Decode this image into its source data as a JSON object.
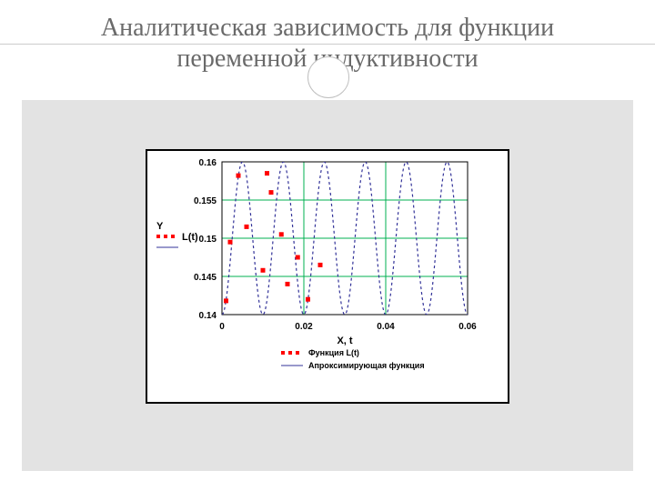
{
  "title_line1": "Аналитическая зависимость для функции",
  "title_line2": "переменной индуктивности",
  "chart": {
    "type": "scatter+line",
    "plot_bg": "#ffffff",
    "border_color": "#000000",
    "grid_color": "#00b050",
    "tick_font_size": 10,
    "tick_font_weight": "bold",
    "tick_color": "#000000",
    "x_axis": {
      "min": 0,
      "max": 0.06,
      "ticks": [
        0,
        0.02,
        0.04,
        0.06
      ],
      "label": "X, t"
    },
    "y_axis": {
      "min": 0.14,
      "max": 0.16,
      "ticks": [
        0.14,
        0.145,
        0.15,
        0.155,
        0.16
      ]
    },
    "y_labels": [
      "Y",
      "L(t)"
    ],
    "line_series": {
      "color": "#333399",
      "dash": "3,3",
      "width": 1.2,
      "amplitude": 0.01,
      "offset": 0.15,
      "period": 0.01,
      "phase": -1.5708
    },
    "scatter_series": {
      "color": "#ff0000",
      "marker": "square",
      "size": 5,
      "points": [
        [
          0.001,
          0.1418
        ],
        [
          0.002,
          0.1495
        ],
        [
          0.004,
          0.1582
        ],
        [
          0.006,
          0.1515
        ],
        [
          0.01,
          0.1458
        ],
        [
          0.011,
          0.1585
        ],
        [
          0.012,
          0.156
        ],
        [
          0.0145,
          0.1505
        ],
        [
          0.016,
          0.144
        ],
        [
          0.0185,
          0.1475
        ],
        [
          0.021,
          0.142
        ],
        [
          0.024,
          0.1465
        ]
      ]
    },
    "legend": {
      "items": [
        {
          "label": "Функция L(t)",
          "kind": "scatter",
          "color": "#ff0000"
        },
        {
          "label": "Апроксимирующая функция",
          "kind": "line",
          "color": "#333399"
        }
      ],
      "font_size": 9,
      "font_weight": "bold"
    }
  }
}
